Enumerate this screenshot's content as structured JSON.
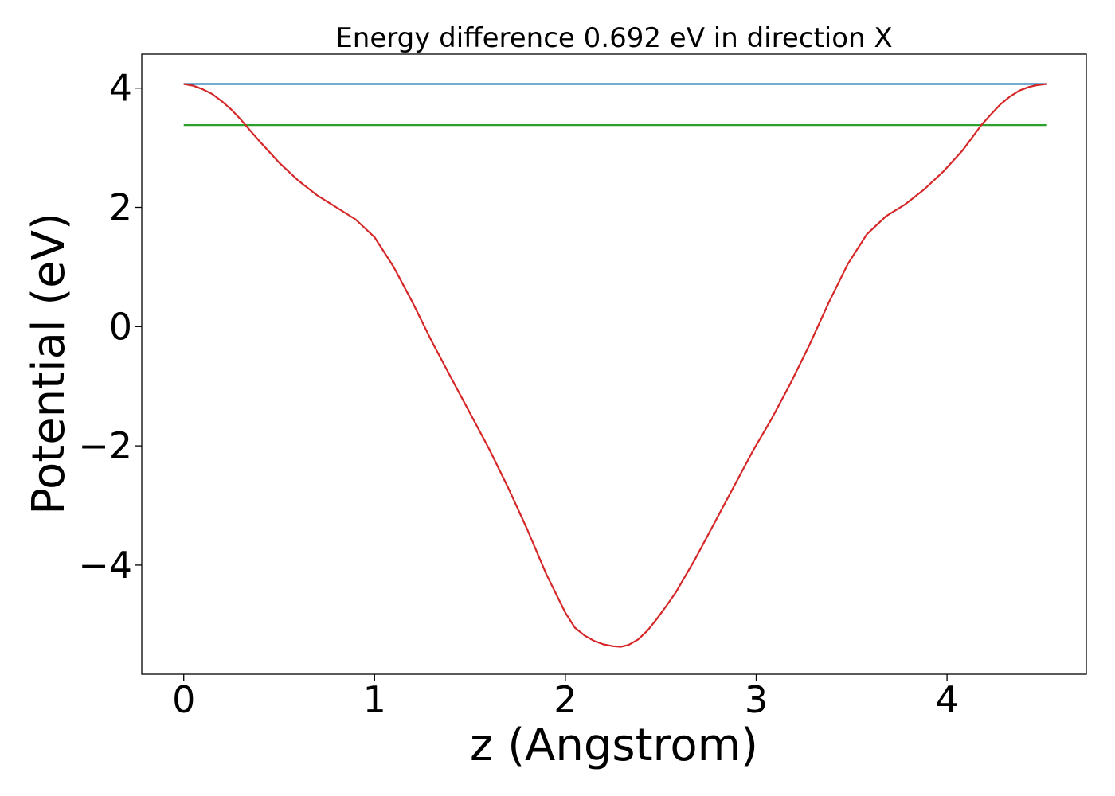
{
  "chart_data": {
    "type": "line",
    "title": "Energy difference 0.692 eV in direction X",
    "xlabel": "z (Angstrom)",
    "ylabel": "Potential (eV)",
    "xlim": [
      -0.22,
      4.73
    ],
    "ylim": [
      -5.83,
      4.57
    ],
    "xticks": [
      0,
      1,
      2,
      3,
      4
    ],
    "yticks": [
      -4,
      -2,
      0,
      2,
      4
    ],
    "xtick_labels": [
      "0",
      "1",
      "2",
      "3",
      "4"
    ],
    "ytick_labels": [
      "−4",
      "−2",
      "0",
      "2",
      "4"
    ],
    "grid": false,
    "series": [
      {
        "color": "#1f77b4",
        "x": [
          0,
          4.52
        ],
        "y": [
          4.07,
          4.07
        ]
      },
      {
        "color": "#2ca02c",
        "x": [
          0,
          4.52
        ],
        "y": [
          3.38,
          3.38
        ]
      },
      {
        "color": "#d62728",
        "x": [
          0,
          0.05,
          0.1,
          0.15,
          0.2,
          0.25,
          0.3,
          0.35,
          0.4,
          0.5,
          0.6,
          0.7,
          0.8,
          0.9,
          1.0,
          1.1,
          1.2,
          1.3,
          1.4,
          1.5,
          1.6,
          1.7,
          1.8,
          1.9,
          2.0,
          2.05,
          2.1,
          2.15,
          2.2,
          2.25,
          2.29,
          2.33,
          2.38,
          2.43,
          2.48,
          2.53,
          2.58,
          2.68,
          2.78,
          2.88,
          2.98,
          3.08,
          3.18,
          3.28,
          3.38,
          3.48,
          3.58,
          3.68,
          3.78,
          3.88,
          3.98,
          4.08,
          4.18,
          4.23,
          4.28,
          4.33,
          4.38,
          4.43,
          4.47,
          4.52
        ],
        "y": [
          4.07,
          4.04,
          3.98,
          3.9,
          3.78,
          3.64,
          3.47,
          3.28,
          3.1,
          2.75,
          2.45,
          2.2,
          2.0,
          1.8,
          1.5,
          1.0,
          0.4,
          -0.25,
          -0.85,
          -1.45,
          -2.05,
          -2.7,
          -3.4,
          -4.15,
          -4.8,
          -5.05,
          -5.18,
          -5.27,
          -5.33,
          -5.36,
          -5.37,
          -5.34,
          -5.25,
          -5.1,
          -4.9,
          -4.68,
          -4.45,
          -3.9,
          -3.3,
          -2.7,
          -2.1,
          -1.55,
          -0.95,
          -0.3,
          0.4,
          1.05,
          1.55,
          1.85,
          2.05,
          2.3,
          2.6,
          2.95,
          3.38,
          3.56,
          3.73,
          3.86,
          3.96,
          4.02,
          4.05,
          4.07
        ]
      }
    ]
  }
}
